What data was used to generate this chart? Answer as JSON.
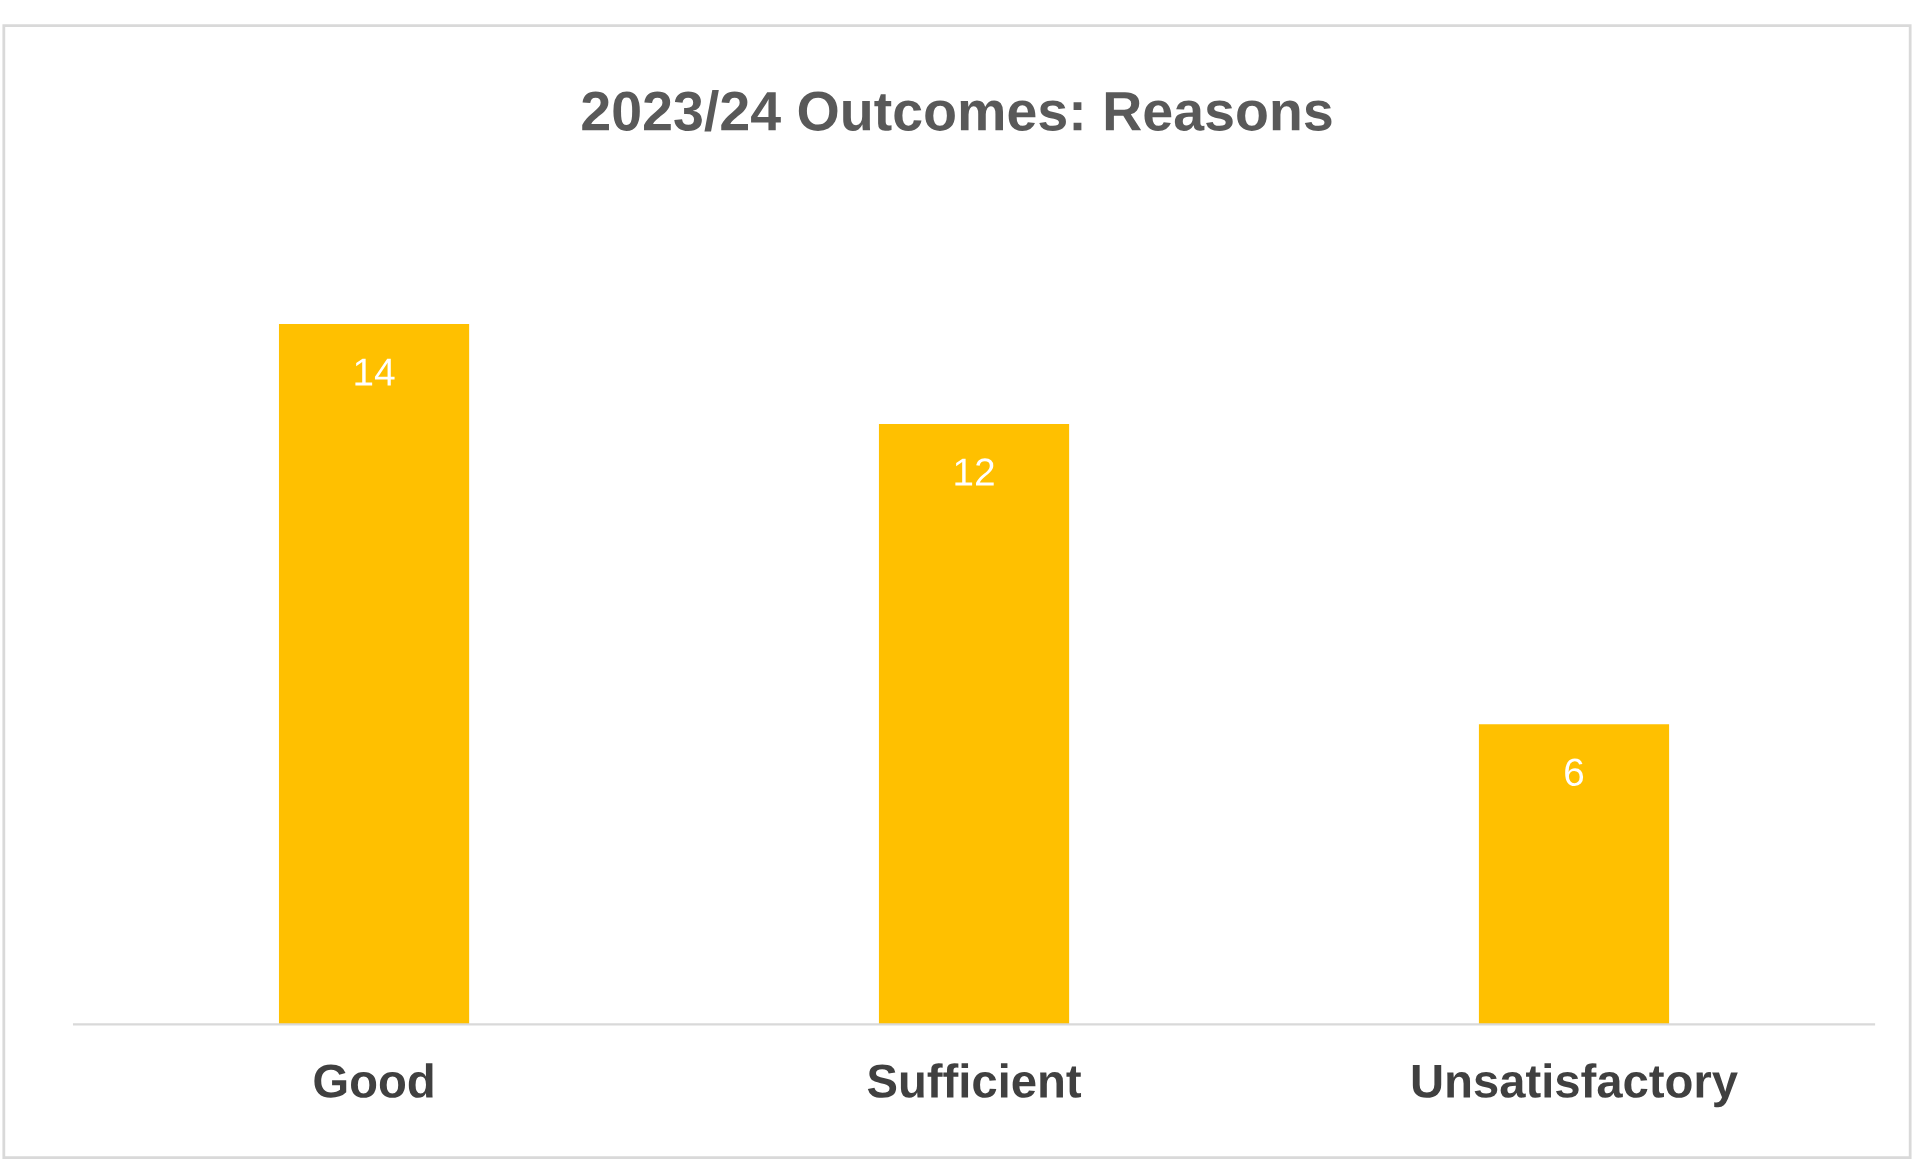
{
  "chart_data": {
    "type": "bar",
    "title": "2023/24 Outcomes: Reasons",
    "categories": [
      "Good",
      "Sufficient",
      "Unsatisfactory"
    ],
    "values": [
      14,
      12,
      6
    ],
    "color": "#ffc000",
    "data_labels": true,
    "grid": false,
    "legend": false
  }
}
